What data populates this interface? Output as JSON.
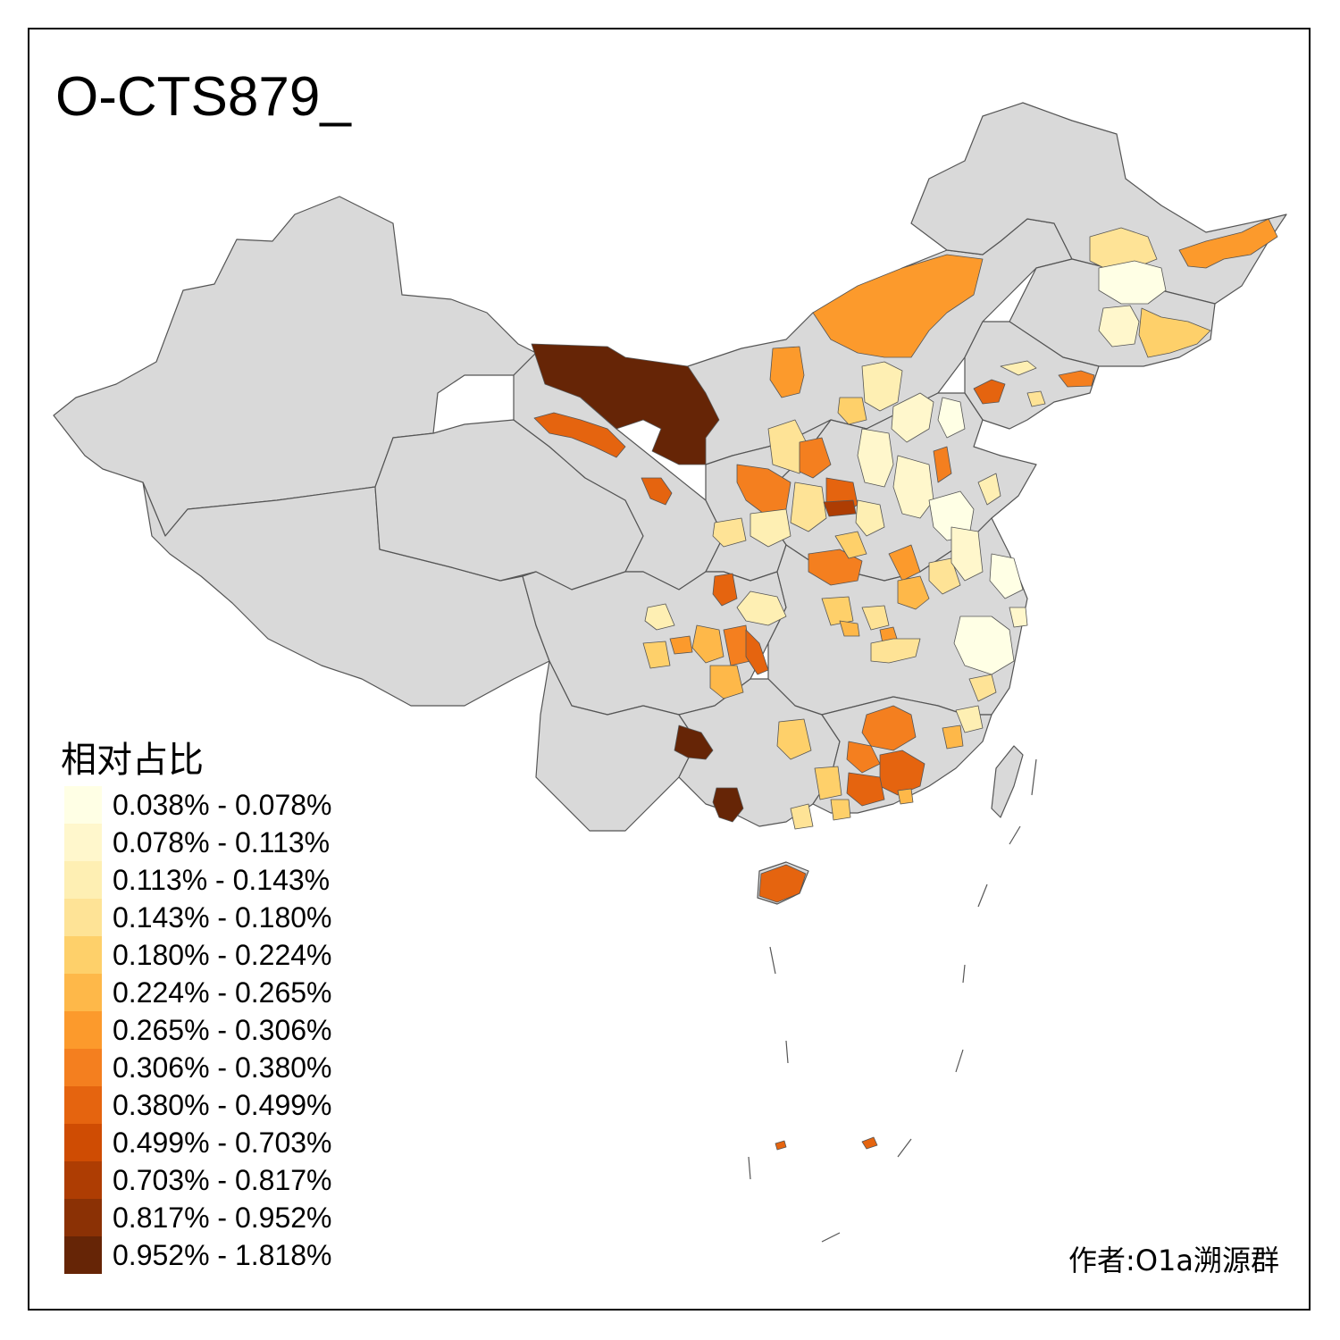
{
  "title": "O-CTS879_",
  "legend": {
    "title": "相对占比",
    "items": [
      {
        "label": "0.038% - 0.078%",
        "color": "#FFFFE5"
      },
      {
        "label": "0.078% - 0.113%",
        "color": "#FFF7CC"
      },
      {
        "label": "0.113% - 0.143%",
        "color": "#FEEFB3"
      },
      {
        "label": "0.143% - 0.180%",
        "color": "#FEE396"
      },
      {
        "label": "0.180% - 0.224%",
        "color": "#FED06A"
      },
      {
        "label": "0.224% - 0.265%",
        "color": "#FEB849"
      },
      {
        "label": "0.265% - 0.306%",
        "color": "#FC9A2C"
      },
      {
        "label": "0.306% - 0.380%",
        "color": "#F47F1F"
      },
      {
        "label": "0.380% - 0.499%",
        "color": "#E5640F"
      },
      {
        "label": "0.499% - 0.703%",
        "color": "#CF4C03"
      },
      {
        "label": "0.703% - 0.817%",
        "color": "#AE3D03"
      },
      {
        "label": "0.817% - 0.952%",
        "color": "#8B3105"
      },
      {
        "label": "0.952% - 1.818%",
        "color": "#662506"
      }
    ]
  },
  "credit": "作者:O1a溯源群",
  "colors": {
    "base_region": "#D9D9D9",
    "border": "#555555",
    "frame": "#000000"
  }
}
